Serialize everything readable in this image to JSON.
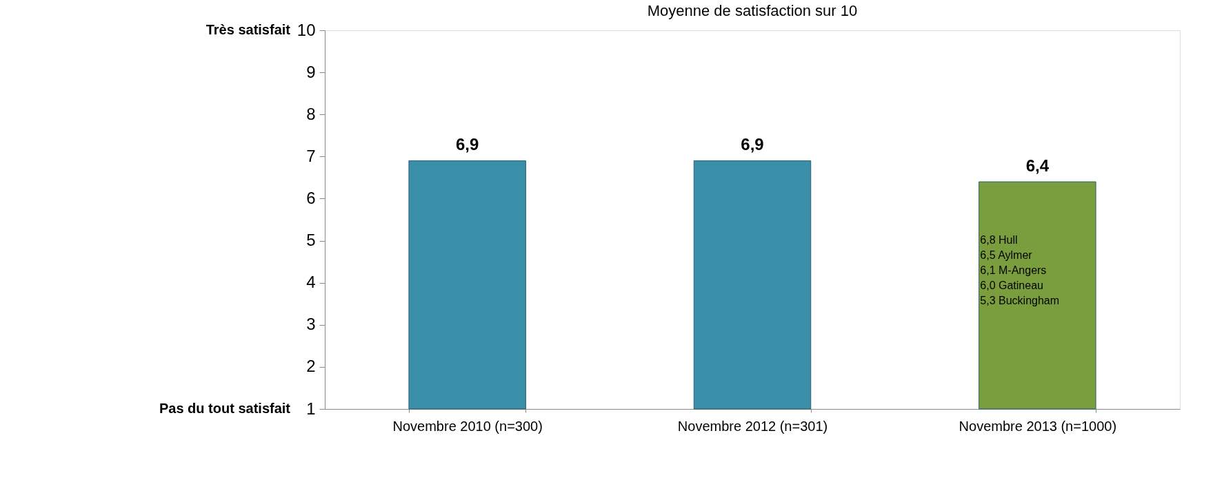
{
  "chart_data": {
    "type": "bar",
    "title": "Moyenne de satisfaction sur 10",
    "categories": [
      "Novembre 2010 (n=300)",
      "Novembre 2012 (n=301)",
      "Novembre 2013 (n=1000)"
    ],
    "values": [
      6.9,
      6.9,
      6.4
    ],
    "colors": [
      "#3a8fa8",
      "#3a8fa8",
      "#7a9e3e"
    ],
    "value_labels": [
      "6,9",
      "6,9",
      "6,4"
    ],
    "ylim": [
      1,
      10
    ],
    "yticks": [
      1,
      2,
      3,
      4,
      5,
      6,
      7,
      8,
      9,
      10
    ],
    "grid": false,
    "annotations": [
      "Très satisfait",
      "Pas du tout satisfait",
      "6,8 Hull",
      "6,5 Aylmer",
      "6,1 M-Angers",
      "6,0 Gatineau",
      "5,3 Buckingham"
    ]
  }
}
